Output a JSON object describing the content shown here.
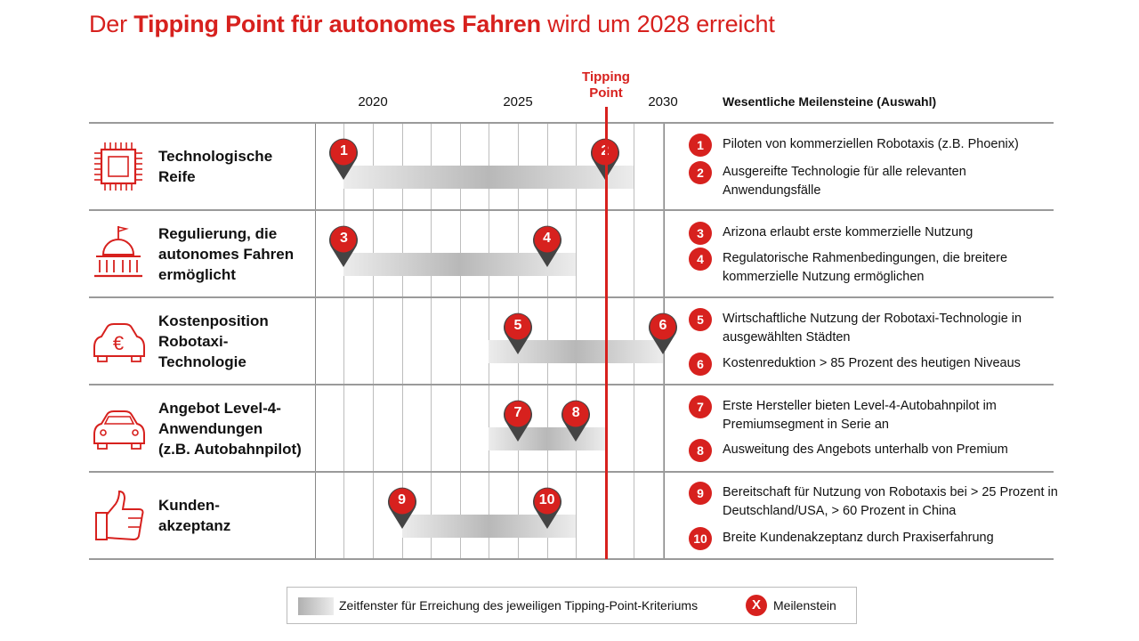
{
  "title": {
    "prefix": "Der ",
    "bold": "Tipping Point für autonomes Fahren",
    "suffix": " wird um 2028 erreicht"
  },
  "years": [
    "2020",
    "2025",
    "2030"
  ],
  "tipping_point_label": [
    "Tipping",
    "Point"
  ],
  "milestones_header": "Wesentliche Meilensteine (Auswahl)",
  "colors": {
    "accent": "#d7211e",
    "grid": "#bdbdbd",
    "text": "#111111"
  },
  "rows": [
    {
      "label": [
        "Technologische",
        "Reife"
      ],
      "icon": "chip-icon",
      "window": {
        "start": 2019,
        "end": 2029
      },
      "pins": [
        {
          "n": "1",
          "year": 2019
        },
        {
          "n": "2",
          "year": 2028
        }
      ]
    },
    {
      "label": [
        "Regulierung, die",
        "autonomes Fahren",
        "ermöglicht"
      ],
      "icon": "government-building-icon",
      "window": {
        "start": 2019,
        "end": 2027
      },
      "pins": [
        {
          "n": "3",
          "year": 2019
        },
        {
          "n": "4",
          "year": 2026
        }
      ]
    },
    {
      "label": [
        "Kostenposition",
        "Robotaxi-",
        "Technologie"
      ],
      "icon": "euro-car-icon",
      "window": {
        "start": 2024,
        "end": 2030
      },
      "pins": [
        {
          "n": "5",
          "year": 2025
        },
        {
          "n": "6",
          "year": 2030
        }
      ]
    },
    {
      "label": [
        "Angebot Level-4-",
        "Anwendungen",
        "(z.B. Autobahnpilot)"
      ],
      "icon": "car-icon",
      "window": {
        "start": 2024,
        "end": 2028
      },
      "pins": [
        {
          "n": "7",
          "year": 2025
        },
        {
          "n": "8",
          "year": 2027
        }
      ]
    },
    {
      "label": [
        "Kunden-",
        "akzeptanz"
      ],
      "icon": "thumbs-up-icon",
      "window": {
        "start": 2021,
        "end": 2027
      },
      "pins": [
        {
          "n": "9",
          "year": 2021
        },
        {
          "n": "10",
          "year": 2026
        }
      ]
    }
  ],
  "milestones": [
    {
      "n": "1",
      "text": "Piloten von kommerziellen Robotaxis (z.B. Phoenix)"
    },
    {
      "n": "2",
      "text": "Ausgereifte Technologie für alle relevanten Anwendungsfälle"
    },
    {
      "n": "3",
      "text": "Arizona erlaubt erste kommerzielle Nutzung"
    },
    {
      "n": "4",
      "text": "Regulatorische Rahmenbedingungen, die breitere kommerzielle Nutzung ermöglichen"
    },
    {
      "n": "5",
      "text": "Wirtschaftliche Nutzung der Robotaxi-Technologie in ausgewählten Städten"
    },
    {
      "n": "6",
      "text": "Kostenreduktion > 85 Prozent des heutigen Niveaus"
    },
    {
      "n": "7",
      "text": "Erste Hersteller bieten Level-4-Autobahnpilot im Premiumsegment in Serie an"
    },
    {
      "n": "8",
      "text": "Ausweitung des Angebots unterhalb von Premium"
    },
    {
      "n": "9",
      "text": "Bereitschaft für Nutzung von Robotaxis bei > 25 Prozent in Deutschland/USA, > 60 Prozent in China"
    },
    {
      "n": "10",
      "text": "Breite Kundenakzeptanz durch Praxiserfahrung"
    }
  ],
  "legend": {
    "window_label": "Zeitfenster für Erreichung des jeweiligen Tipping-Point-Kriteriums",
    "milestone_symbol": "X",
    "milestone_label": "Meilenstein"
  }
}
